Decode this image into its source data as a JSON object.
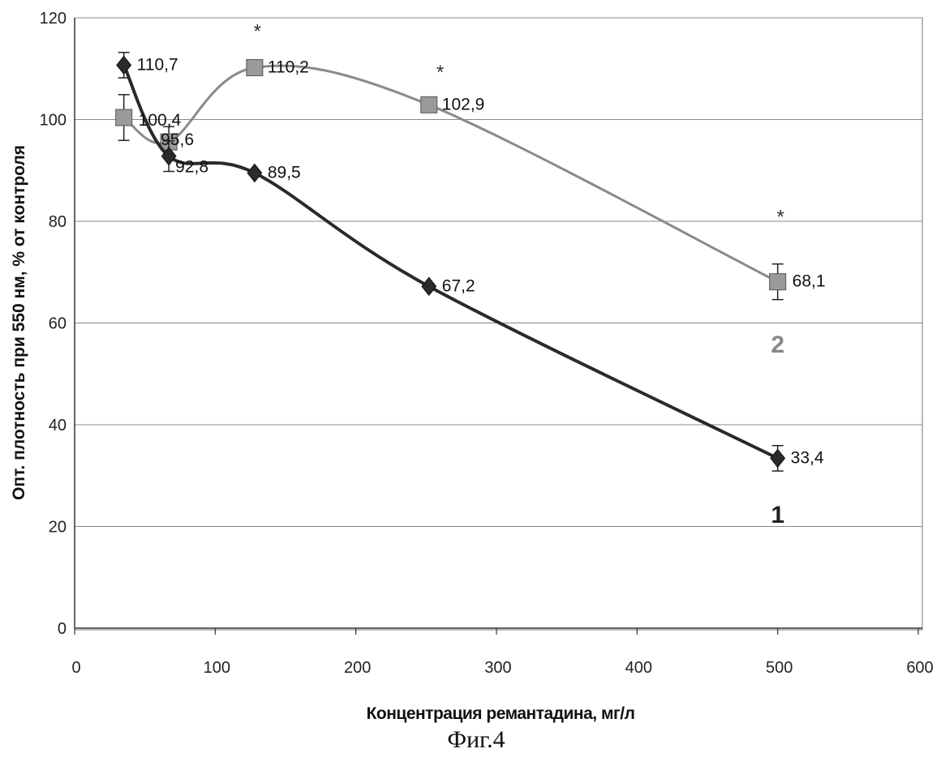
{
  "chart_data": {
    "type": "line",
    "title": "",
    "xlabel": "Концентрация ремантадина, мг/л",
    "ylabel": "Опт. плотность при 550 нм, % от контроля",
    "xlim": [
      0,
      600
    ],
    "ylim": [
      0,
      120
    ],
    "x_ticks": [
      "0",
      "100",
      "200",
      "300",
      "400",
      "500",
      "600"
    ],
    "y_ticks": [
      "0",
      "20",
      "40",
      "60",
      "80",
      "100",
      "120"
    ],
    "grid": "horizontal",
    "series": [
      {
        "name": "1",
        "color": "#2a2a2a",
        "marker": "diamond",
        "x": [
          35,
          67,
          128,
          252,
          500
        ],
        "values": [
          110.7,
          92.8,
          89.5,
          67.2,
          33.4
        ],
        "value_labels": [
          "110,7",
          "92,8",
          "89,5",
          "67,2",
          "33,4"
        ],
        "error": [
          2.5,
          3,
          0,
          0,
          2.5
        ]
      },
      {
        "name": "2",
        "color": "#8a8a8a",
        "marker": "square",
        "x": [
          35,
          67,
          128,
          252,
          500
        ],
        "values": [
          100.4,
          95.6,
          110.2,
          102.9,
          68.1
        ],
        "value_labels": [
          "100,4",
          "95,6",
          "110,2",
          "102,9",
          "68,1"
        ],
        "error": [
          4.5,
          3,
          0,
          0,
          3.5
        ]
      }
    ],
    "significance_markers": [
      {
        "text": "*",
        "x": 130,
        "y": 118
      },
      {
        "text": "*",
        "x": 260,
        "y": 110
      },
      {
        "text": "*",
        "x": 502,
        "y": 81.5
      }
    ]
  },
  "caption": "Фиг.4"
}
